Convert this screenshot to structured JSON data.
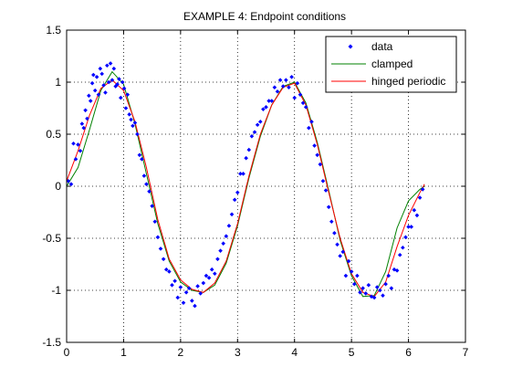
{
  "chart_data": {
    "type": "scatter",
    "title": "EXAMPLE 4: Endpoint conditions",
    "xlabel": "",
    "ylabel": "",
    "xlim": [
      0,
      7
    ],
    "ylim": [
      -1.5,
      1.5
    ],
    "xticks": [
      "0",
      "1",
      "2",
      "3",
      "4",
      "5",
      "6",
      "7"
    ],
    "yticks": [
      "1.5",
      "1",
      "0.5",
      "0",
      "-0.5",
      "-1",
      "-1.5"
    ],
    "grid": true,
    "legend_position": "top-right",
    "legend": [
      "data",
      "clamped",
      "hinged periodic"
    ],
    "series": [
      {
        "name": "data",
        "kind": "markers",
        "color": "#0000ff",
        "x": [
          0.03,
          0.08,
          0.12,
          0.16,
          0.2,
          0.24,
          0.27,
          0.3,
          0.33,
          0.36,
          0.39,
          0.42,
          0.45,
          0.47,
          0.5,
          0.53,
          0.56,
          0.59,
          0.62,
          0.65,
          0.68,
          0.71,
          0.74,
          0.77,
          0.8,
          0.83,
          0.86,
          0.89,
          0.92,
          0.95,
          0.98,
          1.01,
          1.04,
          1.07,
          1.1,
          1.13,
          1.16,
          1.2,
          1.24,
          1.28,
          1.32,
          1.36,
          1.4,
          1.45,
          1.5,
          1.55,
          1.6,
          1.65,
          1.7,
          1.75,
          1.8,
          1.85,
          1.9,
          1.95,
          2.0,
          2.05,
          2.1,
          2.15,
          2.2,
          2.25,
          2.3,
          2.35,
          2.4,
          2.45,
          2.5,
          2.55,
          2.6,
          2.65,
          2.7,
          2.75,
          2.8,
          2.85,
          2.9,
          2.95,
          3.0,
          3.05,
          3.1,
          3.15,
          3.2,
          3.25,
          3.3,
          3.35,
          3.4,
          3.45,
          3.5,
          3.55,
          3.6,
          3.65,
          3.7,
          3.75,
          3.8,
          3.85,
          3.9,
          3.95,
          4.0,
          4.05,
          4.1,
          4.15,
          4.2,
          4.25,
          4.3,
          4.35,
          4.4,
          4.45,
          4.5,
          4.55,
          4.6,
          4.65,
          4.7,
          4.75,
          4.8,
          4.85,
          4.9,
          4.95,
          5.0,
          5.05,
          5.1,
          5.15,
          5.2,
          5.25,
          5.3,
          5.35,
          5.4,
          5.45,
          5.5,
          5.55,
          5.6,
          5.65,
          5.7,
          5.75,
          5.8,
          5.85,
          5.9,
          5.95,
          6.0,
          6.05,
          6.1,
          6.15,
          6.2,
          6.25
        ],
        "y": [
          0.05,
          0.02,
          0.41,
          0.26,
          0.4,
          0.34,
          0.6,
          0.56,
          0.73,
          0.65,
          0.87,
          0.82,
          0.99,
          1.07,
          0.92,
          1.05,
          0.88,
          1.13,
          1.08,
          0.97,
          0.9,
          1.16,
          1.0,
          1.18,
          1.02,
          1.13,
          0.96,
          0.98,
          1.03,
          0.85,
          1.0,
          0.94,
          0.75,
          0.88,
          0.69,
          0.64,
          0.58,
          0.61,
          0.5,
          0.3,
          0.26,
          0.1,
          0.02,
          -0.05,
          -0.19,
          -0.34,
          -0.49,
          -0.6,
          -0.7,
          -0.8,
          -0.82,
          -0.95,
          -0.91,
          -1.07,
          -0.97,
          -1.12,
          -1.02,
          -0.98,
          -1.1,
          -1.15,
          -0.96,
          -1.03,
          -0.93,
          -0.86,
          -0.88,
          -0.8,
          -0.84,
          -0.7,
          -0.62,
          -0.55,
          -0.48,
          -0.38,
          -0.27,
          -0.13,
          -0.06,
          0.12,
          0.12,
          0.27,
          0.35,
          0.48,
          0.52,
          0.59,
          0.62,
          0.74,
          0.76,
          0.82,
          0.82,
          0.95,
          0.91,
          1.02,
          0.96,
          1.02,
          0.95,
          1.05,
          0.85,
          0.99,
          0.88,
          0.8,
          0.76,
          0.56,
          0.62,
          0.39,
          0.3,
          0.21,
          0.05,
          -0.04,
          -0.2,
          -0.34,
          -0.45,
          -0.56,
          -0.67,
          -0.63,
          -0.86,
          -0.72,
          -0.82,
          -0.94,
          -0.86,
          -1.02,
          -0.98,
          -1.03,
          -0.95,
          -1.06,
          -1.07,
          -0.97,
          -1.0,
          -1.05,
          -0.94,
          -0.86,
          -0.98,
          -0.8,
          -0.81,
          -0.66,
          -0.59,
          -0.49,
          -0.39,
          -0.39,
          -0.23,
          -0.28,
          -0.11,
          -0.03
        ]
      },
      {
        "name": "clamped",
        "kind": "line",
        "color": "#008000",
        "x": [
          0,
          0.2,
          0.4,
          0.6,
          0.8,
          1.0,
          1.2,
          1.4,
          1.6,
          1.8,
          2.0,
          2.2,
          2.4,
          2.6,
          2.8,
          3.0,
          3.2,
          3.4,
          3.6,
          3.8,
          4.0,
          4.2,
          4.4,
          4.6,
          4.8,
          5.0,
          5.2,
          5.4,
          5.6,
          5.8,
          6.0,
          6.2,
          6.28
        ],
        "y": [
          0.0,
          0.18,
          0.54,
          0.92,
          1.1,
          0.98,
          0.6,
          0.12,
          -0.36,
          -0.72,
          -0.92,
          -1.0,
          -1.02,
          -0.95,
          -0.74,
          -0.38,
          0.08,
          0.48,
          0.78,
          0.96,
          1.0,
          0.8,
          0.42,
          -0.04,
          -0.52,
          -0.86,
          -1.06,
          -1.05,
          -0.82,
          -0.4,
          -0.14,
          -0.03,
          0.0
        ]
      },
      {
        "name": "hinged periodic",
        "kind": "line",
        "color": "#ff0000",
        "x": [
          0,
          0.2,
          0.4,
          0.6,
          0.8,
          1.0,
          1.2,
          1.4,
          1.6,
          1.8,
          2.0,
          2.2,
          2.4,
          2.6,
          2.8,
          3.0,
          3.2,
          3.4,
          3.6,
          3.8,
          4.0,
          4.2,
          4.4,
          4.6,
          4.8,
          5.0,
          5.2,
          5.4,
          5.6,
          5.8,
          6.0,
          6.2,
          6.28
        ],
        "y": [
          0.05,
          0.34,
          0.68,
          0.94,
          1.02,
          0.92,
          0.62,
          0.18,
          -0.32,
          -0.7,
          -0.9,
          -0.99,
          -1.02,
          -0.93,
          -0.72,
          -0.36,
          0.1,
          0.5,
          0.78,
          0.95,
          0.99,
          0.78,
          0.4,
          -0.06,
          -0.5,
          -0.84,
          -1.02,
          -1.06,
          -0.92,
          -0.58,
          -0.28,
          -0.06,
          0.02
        ]
      }
    ]
  }
}
